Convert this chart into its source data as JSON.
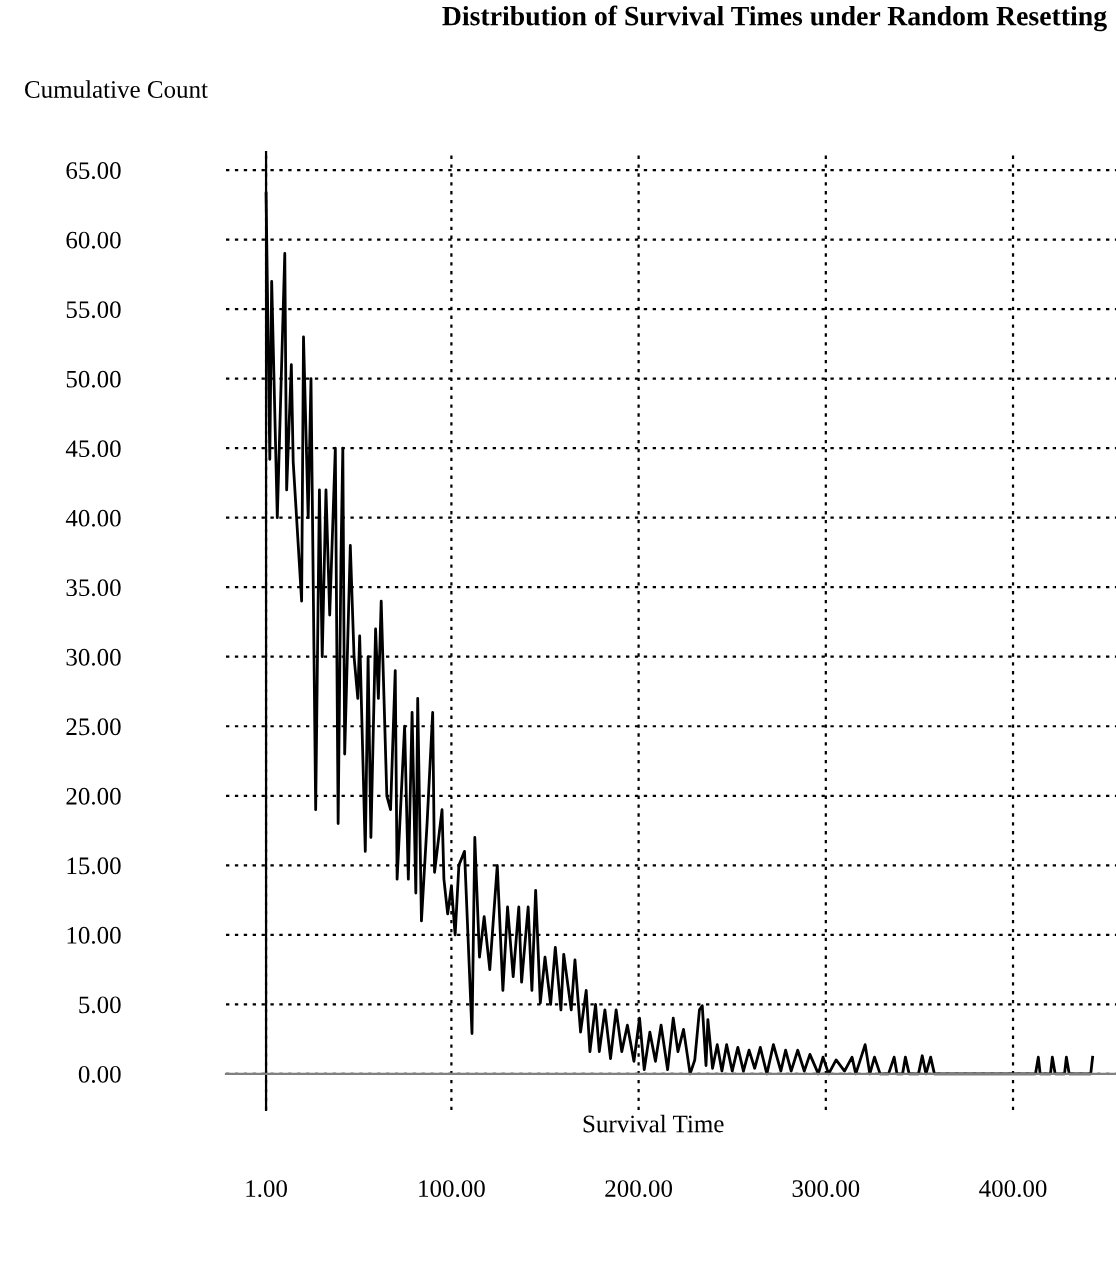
{
  "chart_data": {
    "type": "line",
    "title": "Distribution of Survival Times under Random Resetting",
    "xlabel": "Survival Time",
    "ylabel": "Cumulative Count",
    "grid": true,
    "line_style": "solid",
    "marker": "none",
    "xlim": [
      -20.4,
      455
    ],
    "ylim": [
      -2.6,
      66.3
    ],
    "xticks": [
      {
        "value": 1,
        "label": "1.00"
      },
      {
        "value": 100,
        "label": "100.00"
      },
      {
        "value": 200,
        "label": "200.00"
      },
      {
        "value": 300,
        "label": "300.00"
      },
      {
        "value": 400,
        "label": "400.00"
      }
    ],
    "yticks": [
      {
        "value": 0,
        "label": "0.00"
      },
      {
        "value": 5,
        "label": "5.00"
      },
      {
        "value": 10,
        "label": "10.00"
      },
      {
        "value": 15,
        "label": "15.00"
      },
      {
        "value": 20,
        "label": "20.00"
      },
      {
        "value": 25,
        "label": "25.00"
      },
      {
        "value": 30,
        "label": "30.00"
      },
      {
        "value": 35,
        "label": "35.00"
      },
      {
        "value": 40,
        "label": "40.00"
      },
      {
        "value": 45,
        "label": "45.00"
      },
      {
        "value": 50,
        "label": "50.00"
      },
      {
        "value": 55,
        "label": "55.00"
      },
      {
        "value": 60,
        "label": "60.00"
      },
      {
        "value": 65,
        "label": "65.00"
      }
    ],
    "series": [
      {
        "color": "#000000",
        "x": [
          1,
          3,
          4,
          7,
          11,
          12,
          14.5,
          15.5,
          20,
          21,
          23.5,
          25,
          27.5,
          29.5,
          31,
          33,
          35,
          38,
          39.5,
          41,
          42,
          43,
          46,
          48,
          50,
          51,
          54,
          55.5,
          57,
          59.5,
          61,
          62.5,
          65.5,
          67.5,
          70,
          71,
          75,
          77,
          79,
          81,
          82,
          84,
          87,
          90,
          91,
          95,
          96,
          98,
          100,
          102,
          104,
          107,
          111,
          112.5,
          115,
          117.5,
          120.5,
          124.5,
          127.5,
          130,
          133,
          136,
          137.5,
          141,
          143,
          145,
          147.5,
          150,
          153,
          155.5,
          158.5,
          160,
          164,
          166,
          169,
          172,
          174,
          177,
          179,
          182,
          185,
          188,
          191,
          194,
          197.5,
          200.5,
          203,
          206,
          209,
          212,
          215.5,
          218.5,
          221,
          224,
          227.5,
          230,
          232.5,
          234,
          236,
          237,
          239.5,
          242,
          244.5,
          247,
          250,
          253,
          256,
          259,
          262,
          265,
          268.5,
          272,
          276,
          278.5,
          281.5,
          285,
          288.5,
          291.5,
          296,
          298.5,
          301.5,
          305.5,
          310,
          314,
          316,
          321,
          323.5,
          326,
          329,
          333.5,
          336.5,
          338,
          341,
          342.5,
          344.5,
          349.5,
          351.5,
          353.5,
          356,
          358,
          412,
          413.5,
          414.5,
          420,
          421,
          422.5,
          427.5,
          428.5,
          430,
          441.5,
          442.5
        ],
        "values": [
          63.3,
          44.2,
          57,
          40,
          59,
          42,
          51,
          44,
          34,
          53,
          40,
          50,
          19,
          42,
          30,
          42,
          33,
          45,
          18,
          37,
          45,
          23,
          38,
          30,
          27,
          31.5,
          16,
          30,
          17,
          32,
          27,
          34,
          20,
          19,
          29,
          14,
          25,
          14,
          26,
          13,
          27,
          11,
          18,
          26,
          14.5,
          19,
          14,
          11.5,
          13.5,
          10,
          15,
          16,
          2.9,
          17,
          8.4,
          11.3,
          7.5,
          15,
          6,
          12,
          7,
          12,
          6.6,
          12,
          6,
          13.2,
          5.1,
          8.4,
          5,
          9.1,
          4.6,
          8.6,
          4.6,
          8.2,
          3,
          6,
          1.6,
          5,
          1.6,
          4.6,
          1.1,
          4.6,
          1.6,
          3.5,
          0.9,
          4,
          0.3,
          3,
          0.9,
          3.5,
          0.3,
          4,
          1.6,
          3.2,
          0,
          1,
          4.6,
          4.9,
          0.6,
          3.9,
          0.4,
          2.1,
          0.2,
          2.1,
          0.2,
          1.9,
          0.2,
          1.7,
          0.4,
          1.9,
          0,
          2.1,
          0.2,
          1.7,
          0.2,
          1.7,
          0.2,
          1.4,
          0,
          1.2,
          0,
          1,
          0.2,
          1.2,
          0,
          2.1,
          0,
          1.2,
          0,
          0,
          1.2,
          0,
          0,
          1.2,
          0,
          0,
          1.3,
          0,
          1.2,
          0,
          0,
          1.2,
          0,
          0,
          1.2,
          0,
          0,
          1.2,
          0,
          0,
          1.2
        ]
      }
    ]
  }
}
